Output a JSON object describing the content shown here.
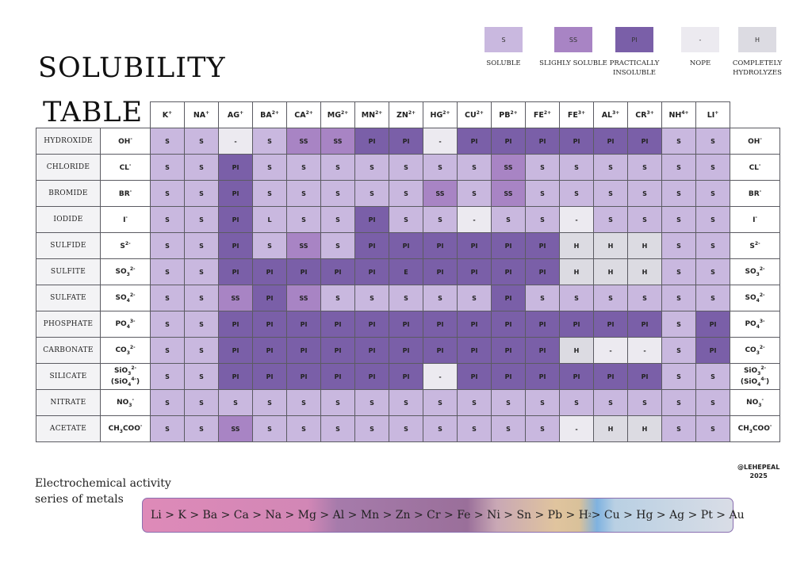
{
  "title": {
    "line1": "SOLUBILITY",
    "line2": "TABLE"
  },
  "legend": [
    {
      "code": "S",
      "label": "SOLUBLE",
      "color": "#c9b8df"
    },
    {
      "code": "SS",
      "label": "SLIGHLY SOLUBLE",
      "color": "#a884c4"
    },
    {
      "code": "PI",
      "label": "PRACTICALLY INSOLUBLE",
      "color": "#7a5fa8"
    },
    {
      "code": "-",
      "label": "NOPE",
      "color": "#eceaf0"
    },
    {
      "code": "H",
      "label": "COMPLETELY HYDROLYZES",
      "color": "#dcdbe2"
    }
  ],
  "cations": [
    {
      "base": "K",
      "sup": "+"
    },
    {
      "base": "NA",
      "sup": "+"
    },
    {
      "base": "AG",
      "sup": "+"
    },
    {
      "base": "BA",
      "sup": "2+"
    },
    {
      "base": "CA",
      "sup": "2+"
    },
    {
      "base": "MG",
      "sup": "2+"
    },
    {
      "base": "MN",
      "sup": "2+"
    },
    {
      "base": "ZN",
      "sup": "2+"
    },
    {
      "base": "HG",
      "sup": "2+"
    },
    {
      "base": "CU",
      "sup": "2+"
    },
    {
      "base": "PB",
      "sup": "2+"
    },
    {
      "base": "FE",
      "sup": "2+"
    },
    {
      "base": "FE",
      "sup": "3+"
    },
    {
      "base": "AL",
      "sup": "3+"
    },
    {
      "base": "CR",
      "sup": "3+"
    },
    {
      "base": "NH",
      "sup": "4+"
    },
    {
      "base": "LI",
      "sup": "+"
    }
  ],
  "rows": [
    {
      "name": "HYDROXIDE",
      "anion": "OH<sup>-</sup>",
      "values": [
        "S",
        "S",
        "-",
        "S",
        "SS",
        "SS",
        "PI",
        "PI",
        "-",
        "PI",
        "PI",
        "PI",
        "PI",
        "PI",
        "PI",
        "S",
        "S"
      ]
    },
    {
      "name": "CHLORIDE",
      "anion": "CL<sup>-</sup>",
      "values": [
        "S",
        "S",
        "PI",
        "S",
        "S",
        "S",
        "S",
        "S",
        "S",
        "S",
        "SS",
        "S",
        "S",
        "S",
        "S",
        "S",
        "S"
      ]
    },
    {
      "name": "BROMIDE",
      "anion": "BR<sup>-</sup>",
      "values": [
        "S",
        "S",
        "PI",
        "S",
        "S",
        "S",
        "S",
        "S",
        "SS",
        "S",
        "SS",
        "S",
        "S",
        "S",
        "S",
        "S",
        "S"
      ]
    },
    {
      "name": "IODIDE",
      "anion": "I<sup>-</sup>",
      "values": [
        "S",
        "S",
        "PI",
        "L",
        "S",
        "S",
        "PI",
        "S",
        "S",
        "-",
        "S",
        "S",
        "-",
        "S",
        "S",
        "S",
        "S"
      ]
    },
    {
      "name": "SULFIDE",
      "anion": "S<sup>2-</sup>",
      "values": [
        "S",
        "S",
        "PI",
        "S",
        "SS",
        "S",
        "PI",
        "PI",
        "PI",
        "PI",
        "PI",
        "PI",
        "H",
        "H",
        "H",
        "S",
        "S"
      ]
    },
    {
      "name": "SULFITE",
      "anion": "SO<sub>3</sub><sup>2-</sup>",
      "values": [
        "S",
        "S",
        "PI",
        "PI",
        "PI",
        "PI",
        "PI",
        "E",
        "PI",
        "PI",
        "PI",
        "PI",
        "H",
        "H",
        "H",
        "S",
        "S"
      ]
    },
    {
      "name": "SULFATE",
      "anion": "SO<sub>4</sub><sup>2-</sup>",
      "values": [
        "S",
        "S",
        "SS",
        "PI",
        "SS",
        "S",
        "S",
        "S",
        "S",
        "S",
        "PI",
        "S",
        "S",
        "S",
        "S",
        "S",
        "S"
      ]
    },
    {
      "name": "PHOSPHATE",
      "anion": "PO<sub>4</sub><sup>3-</sup>",
      "values": [
        "S",
        "S",
        "PI",
        "PI",
        "PI",
        "PI",
        "PI",
        "PI",
        "PI",
        "PI",
        "PI",
        "PI",
        "PI",
        "PI",
        "PI",
        "S",
        "PI"
      ]
    },
    {
      "name": "CARBONATE",
      "anion": "CO<sub>3</sub><sup>2-</sup>",
      "values": [
        "S",
        "S",
        "PI",
        "PI",
        "PI",
        "PI",
        "PI",
        "PI",
        "PI",
        "PI",
        "PI",
        "PI",
        "H",
        "-",
        "-",
        "S",
        "PI"
      ]
    },
    {
      "name": "SILICATE",
      "anion": "SiO<sub>3</sub><sup>2-</sup>(SiO<sub>4</sub><sup>4-</sup>)",
      "values": [
        "S",
        "S",
        "PI",
        "PI",
        "PI",
        "PI",
        "PI",
        "PI",
        "-",
        "PI",
        "PI",
        "PI",
        "PI",
        "PI",
        "PI",
        "S",
        "S"
      ]
    },
    {
      "name": "NITRATE",
      "anion": "NO<sub>3</sub><sup>-</sup>",
      "values": [
        "S",
        "S",
        "S",
        "S",
        "S",
        "S",
        "S",
        "S",
        "S",
        "S",
        "S",
        "S",
        "S",
        "S",
        "S",
        "S",
        "S"
      ]
    },
    {
      "name": "ACETATE",
      "anion": "CH<sub>3</sub>COO<sup>-</sup>",
      "values": [
        "S",
        "S",
        "SS",
        "S",
        "S",
        "S",
        "S",
        "S",
        "S",
        "S",
        "S",
        "S",
        "-",
        "H",
        "H",
        "S",
        "S"
      ]
    }
  ],
  "credit": {
    "handle": "@LEHEPEAL",
    "year": "2025"
  },
  "series": {
    "label_line1": "Electrochemical activity",
    "label_line2": "series of metals",
    "metals": [
      "Li",
      "K",
      "Ba",
      "Ca",
      "Na",
      "Mg",
      "Al",
      "Mn",
      "Zn",
      "Cr",
      "Fe",
      "Ni",
      "Sn",
      "Pb",
      "H<sub>2</sub>",
      "Cu",
      "Hg",
      "Ag",
      "Pt",
      "Au"
    ],
    "separator": " > "
  }
}
